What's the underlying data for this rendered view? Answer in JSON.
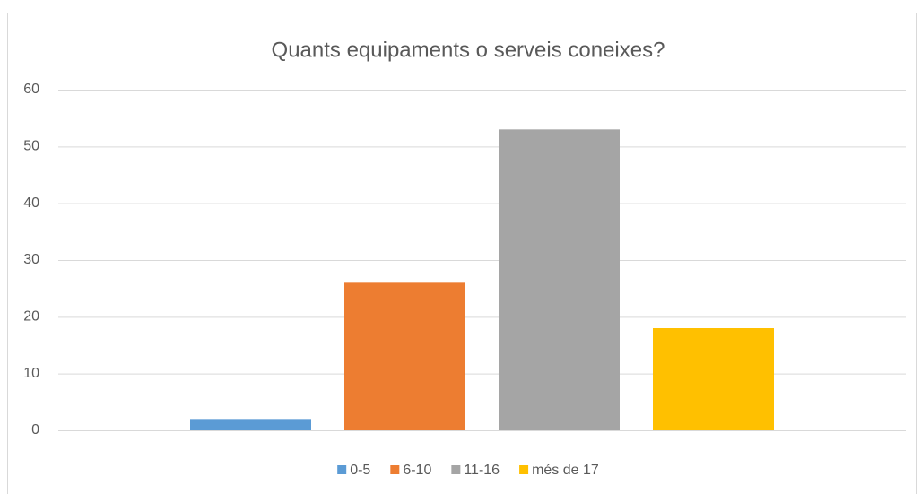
{
  "chart_data": {
    "type": "bar",
    "title": "Quants equipaments o serveis coneixes?",
    "categories": [
      null
    ],
    "series": [
      {
        "name": "0-5",
        "color": "#5b9bd5",
        "values": [
          2
        ]
      },
      {
        "name": "6-10",
        "color": "#ed7d31",
        "values": [
          26
        ]
      },
      {
        "name": "11-16",
        "color": "#a5a5a5",
        "values": [
          53
        ]
      },
      {
        "name": "més de 17",
        "color": "#ffc000",
        "values": [
          18
        ]
      }
    ],
    "ylim": [
      0,
      60
    ],
    "yticks": [
      0,
      10,
      20,
      30,
      40,
      50,
      60
    ],
    "grid": true,
    "legend": "bottom"
  }
}
